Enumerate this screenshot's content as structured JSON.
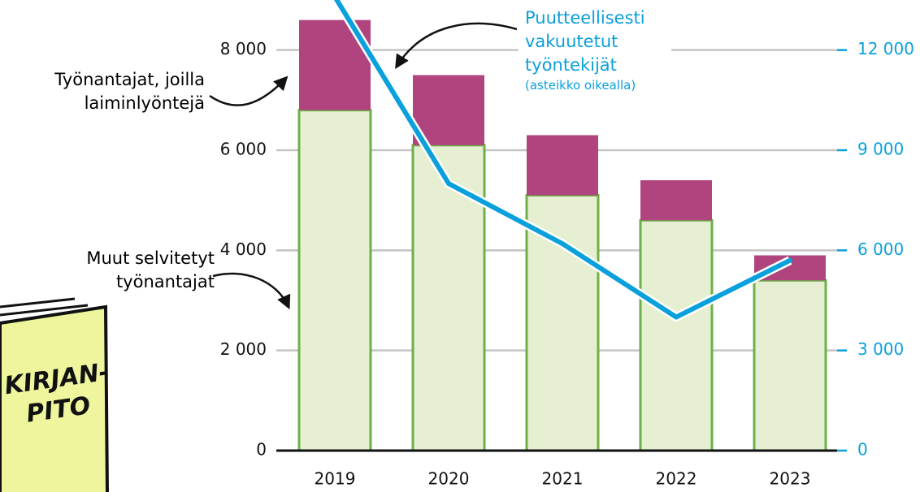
{
  "chart_data": {
    "type": "bar",
    "stacked": true,
    "categories": [
      "2019",
      "2020",
      "2021",
      "2022",
      "2023"
    ],
    "series": [
      {
        "name": "Muut selvitetyt työnantajat",
        "color": "#e6efd2",
        "edge_color": "#6db04a",
        "values": [
          6800,
          6100,
          5100,
          4600,
          3400
        ]
      },
      {
        "name": "Työnantajat, joilla laiminlyöntejä",
        "color": "#b0447e",
        "values": [
          1800,
          1400,
          1200,
          800,
          500
        ]
      },
      {
        "name": "Puutteellisesti vakuutetut työntekijät",
        "type": "line",
        "axis": "y2",
        "color": "#0aa0dc",
        "values": [
          13600,
          8000,
          6200,
          4000,
          5700
        ]
      }
    ],
    "line_note": "(asteikko oikealla)",
    "ylim": [
      0,
      9000
    ],
    "yticks": [
      0,
      {
        "value": 2000,
        "label": "2 000"
      },
      {
        "value": 4000,
        "label": "4 000"
      },
      {
        "value": 6000,
        "label": "6 000"
      },
      {
        "value": 8000,
        "label": "8 000"
      }
    ],
    "y2lim": [
      0,
      13500
    ],
    "y2ticks": [
      0,
      {
        "value": 3000,
        "label": "3 000"
      },
      {
        "value": 6000,
        "label": "6 000"
      },
      {
        "value": 9000,
        "label": "9 000"
      },
      {
        "value": 12000,
        "label": "12 000"
      }
    ],
    "grid": true
  },
  "illustration": {
    "lines": [
      "KIRJAN-",
      "PITO"
    ]
  }
}
